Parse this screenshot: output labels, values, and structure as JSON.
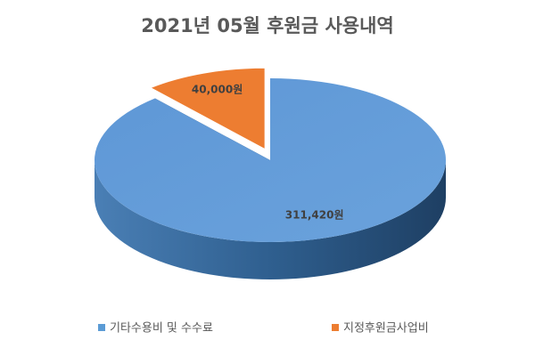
{
  "chart_data": {
    "type": "pie",
    "title": "2021년 05월 후원금 사용내역",
    "categories": [
      "기타수용비 및 수수료",
      "지정후원금사업비"
    ],
    "values": [
      311420,
      40000
    ],
    "value_labels": [
      "311,420원",
      "40,000원"
    ],
    "colors": [
      "#5b9bd5",
      "#ed7d31"
    ],
    "legend": "bottom"
  }
}
